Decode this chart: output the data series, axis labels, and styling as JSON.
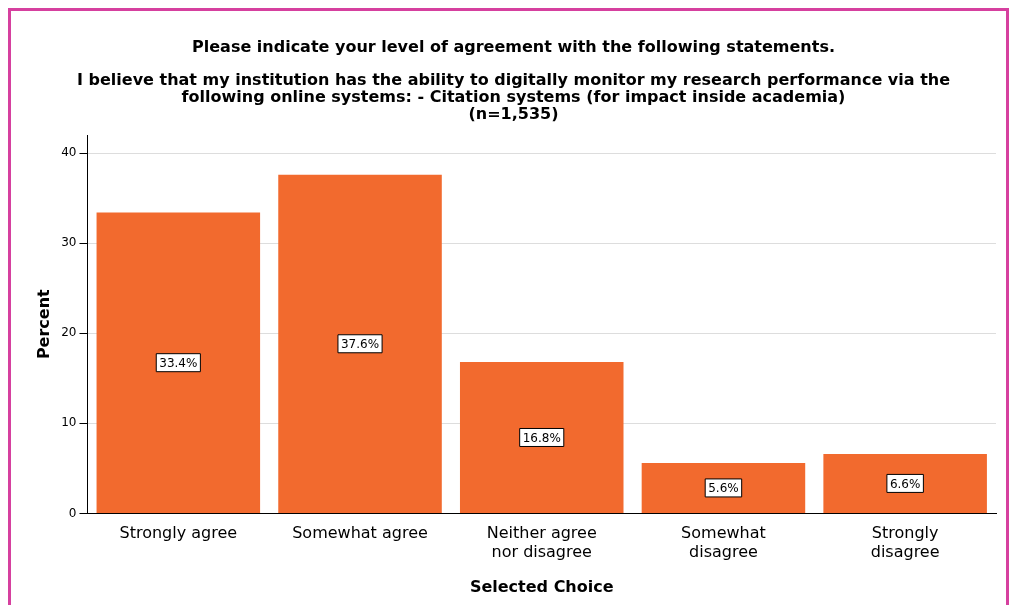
{
  "chart_data": {
    "type": "bar",
    "title": "Please indicate your level of agreement with the following statements.",
    "subtitle": "I believe that my institution has the ability to digitally monitor my research performance via the\nfollowing online systems: - Citation systems (for impact inside academia)\n(n=1,535)",
    "xlabel": "Selected Choice",
    "ylabel": "Percent",
    "categories": [
      "Strongly agree",
      "Somewhat agree",
      "Neither agree nor disagree",
      "Somewhat disagree",
      "Strongly disagree"
    ],
    "values": [
      33.4,
      37.6,
      16.8,
      5.6,
      6.6
    ],
    "value_labels": [
      "33.4%",
      "37.6%",
      "16.8%",
      "5.6%",
      "6.6%"
    ],
    "color": "#f26a2e",
    "ylim": [
      0,
      42
    ],
    "yticks": [
      0,
      10,
      20,
      30,
      40
    ],
    "grid": "y",
    "legend": false
  }
}
